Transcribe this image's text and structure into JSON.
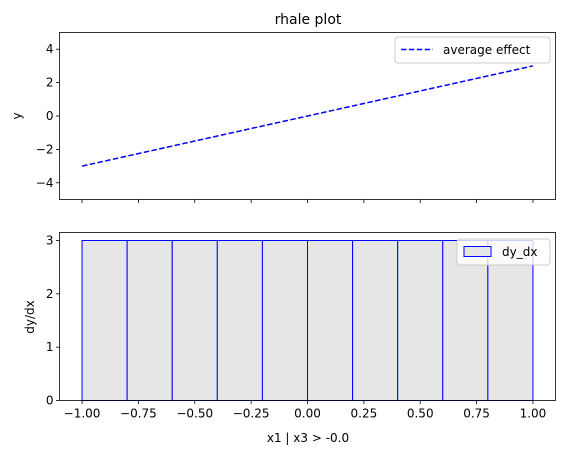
{
  "chart_data": [
    {
      "type": "line",
      "title": "rhale plot",
      "xlabel": "",
      "ylabel": "y",
      "xlim": [
        -1.1,
        1.1
      ],
      "ylim": [
        -5,
        5
      ],
      "yticks": [
        4,
        2,
        0,
        -2,
        -4
      ],
      "ytick_labels": [
        "4",
        "2",
        "0",
        "−2",
        "−4"
      ],
      "xticks": [
        -1.0,
        -0.75,
        -0.5,
        -0.25,
        0.0,
        0.25,
        0.5,
        0.75,
        1.0
      ],
      "series": [
        {
          "name": "average effect",
          "color": "#0000ff",
          "style": "dashed",
          "x": [
            -1.0,
            1.0
          ],
          "y": [
            -3.0,
            3.0
          ]
        }
      ],
      "legend": {
        "position": "top-right",
        "label": "average effect"
      }
    },
    {
      "type": "bar",
      "title": "",
      "xlabel": "x1 | x3  > -0.0",
      "ylabel": "dy/dx",
      "xlim": [
        -1.1,
        1.1
      ],
      "ylim": [
        0,
        3.15
      ],
      "yticks": [
        0,
        1,
        2,
        3
      ],
      "ytick_labels": [
        "0",
        "1",
        "2",
        "3"
      ],
      "xticks": [
        -1.0,
        -0.75,
        -0.5,
        -0.25,
        0.0,
        0.25,
        0.5,
        0.75,
        1.0
      ],
      "xtick_labels": [
        "−1.00",
        "−0.75",
        "−0.50",
        "−0.25",
        "0.00",
        "0.25",
        "0.50",
        "0.75",
        "1.00"
      ],
      "bin_edges": [
        -1.0,
        -0.8,
        -0.6,
        -0.4,
        -0.2,
        0.0,
        0.2,
        0.4,
        0.6,
        0.8,
        1.0
      ],
      "values": [
        3,
        3,
        3,
        3,
        3,
        3,
        3,
        3,
        3,
        3
      ],
      "fill_color": "#e6e6e6",
      "edge_color": "#0000ff",
      "legend": {
        "position": "top-right",
        "label": "dy_dx"
      }
    }
  ]
}
